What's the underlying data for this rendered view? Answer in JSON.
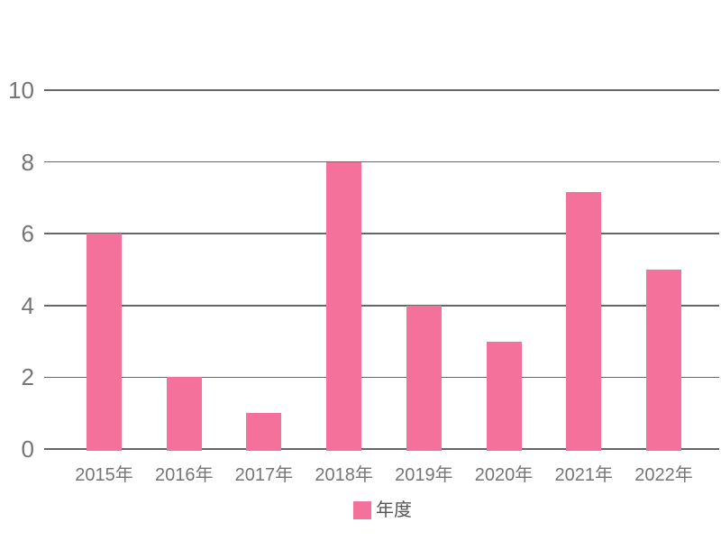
{
  "chart_data": {
    "type": "bar",
    "categories": [
      "2015年",
      "2016年",
      "2017年",
      "2018年",
      "2019年",
      "2020年",
      "2021年",
      "2022年"
    ],
    "values": [
      6,
      2,
      1,
      8,
      4,
      3,
      7.15,
      5
    ],
    "series_name": "年度",
    "ylim": [
      0,
      10
    ],
    "yticks": [
      0,
      2,
      4,
      6,
      8,
      10
    ],
    "grid": true,
    "legend": {
      "label": "年度",
      "position": "bottom"
    },
    "colors": {
      "bar": "#f4719c",
      "gridline": "#666666",
      "tick_label": "#757575",
      "legend_text": "#555555"
    }
  }
}
